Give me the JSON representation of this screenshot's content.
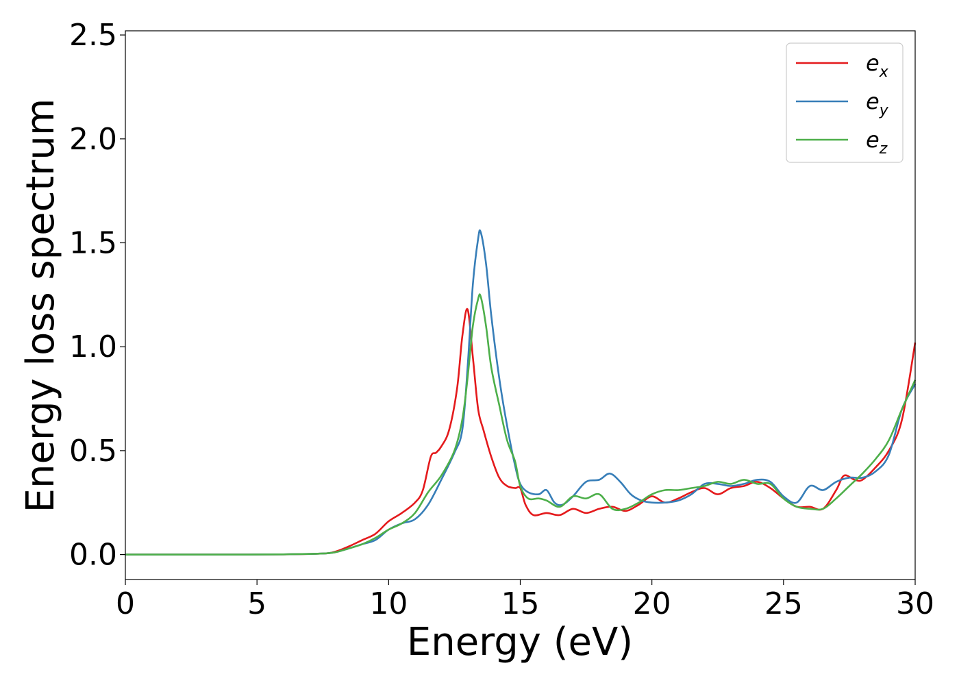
{
  "chart_data": {
    "type": "line",
    "title": "",
    "xlabel": "Energy (eV)",
    "ylabel": "Energy loss spectrum",
    "xlim": [
      0,
      30
    ],
    "ylim": [
      -0.12,
      2.52
    ],
    "xticks": [
      0,
      5,
      10,
      15,
      20,
      25,
      30
    ],
    "xtick_labels": [
      "0",
      "5",
      "10",
      "15",
      "20",
      "25",
      "30"
    ],
    "yticks": [
      0.0,
      0.5,
      1.0,
      1.5,
      2.0,
      2.5
    ],
    "ytick_labels": [
      "0.0",
      "0.5",
      "1.0",
      "1.5",
      "2.0",
      "2.5"
    ],
    "grid": false,
    "legend_position": "top-right",
    "series": [
      {
        "name": "e",
        "subscript": "x",
        "color": "#e41a1c",
        "x": [
          0,
          2,
          4,
          6,
          7.5,
          8,
          8.5,
          9,
          9.5,
          10,
          10.5,
          11,
          11.3,
          11.6,
          11.8,
          12,
          12.3,
          12.6,
          12.8,
          13.0,
          13.2,
          13.4,
          13.6,
          13.9,
          14.2,
          14.5,
          14.8,
          15.0,
          15.2,
          15.5,
          16,
          16.5,
          17,
          17.5,
          18,
          18.5,
          19,
          19.5,
          20,
          20.5,
          21,
          21.5,
          22,
          22.5,
          23,
          23.5,
          24,
          24.5,
          25,
          25.5,
          26,
          26.5,
          27,
          27.3,
          27.7,
          28,
          28.5,
          29,
          29.5,
          30
        ],
        "y": [
          0.0,
          0.0,
          0.0,
          0.001,
          0.005,
          0.015,
          0.04,
          0.07,
          0.1,
          0.16,
          0.2,
          0.25,
          0.31,
          0.47,
          0.49,
          0.52,
          0.6,
          0.8,
          1.05,
          1.18,
          0.95,
          0.7,
          0.6,
          0.47,
          0.37,
          0.33,
          0.32,
          0.32,
          0.24,
          0.19,
          0.2,
          0.19,
          0.22,
          0.2,
          0.22,
          0.23,
          0.21,
          0.24,
          0.28,
          0.25,
          0.27,
          0.3,
          0.32,
          0.29,
          0.32,
          0.33,
          0.35,
          0.32,
          0.27,
          0.23,
          0.23,
          0.22,
          0.31,
          0.38,
          0.36,
          0.36,
          0.42,
          0.5,
          0.65,
          1.02
        ]
      },
      {
        "name": "e",
        "subscript": "y",
        "color": "#377eb8",
        "x": [
          0,
          2,
          4,
          6,
          7.5,
          8,
          8.5,
          9,
          9.5,
          10,
          10.5,
          11,
          11.5,
          12,
          12.5,
          12.8,
          13.0,
          13.2,
          13.4,
          13.5,
          13.7,
          13.9,
          14.2,
          14.5,
          14.8,
          15.0,
          15.3,
          15.7,
          16.0,
          16.3,
          16.6,
          17,
          17.5,
          18,
          18.4,
          18.8,
          19.2,
          19.6,
          20,
          20.5,
          21,
          21.5,
          22,
          22.5,
          23,
          23.5,
          24,
          24.5,
          25,
          25.5,
          26,
          26.5,
          27,
          27.5,
          28,
          28.5,
          29,
          29.5,
          30
        ],
        "y": [
          0.0,
          0.0,
          0.0,
          0.001,
          0.005,
          0.012,
          0.03,
          0.05,
          0.07,
          0.12,
          0.15,
          0.17,
          0.24,
          0.36,
          0.49,
          0.6,
          0.9,
          1.3,
          1.52,
          1.55,
          1.4,
          1.15,
          0.85,
          0.62,
          0.43,
          0.34,
          0.3,
          0.29,
          0.31,
          0.25,
          0.24,
          0.28,
          0.35,
          0.36,
          0.39,
          0.35,
          0.29,
          0.26,
          0.25,
          0.25,
          0.26,
          0.29,
          0.34,
          0.34,
          0.33,
          0.34,
          0.36,
          0.35,
          0.28,
          0.25,
          0.33,
          0.31,
          0.35,
          0.37,
          0.37,
          0.4,
          0.48,
          0.7,
          0.82
        ]
      },
      {
        "name": "e",
        "subscript": "z",
        "color": "#4daf4a",
        "x": [
          0,
          2,
          4,
          6,
          7.5,
          8,
          8.5,
          9,
          9.5,
          10,
          10.5,
          11,
          11.5,
          12,
          12.5,
          12.8,
          13.0,
          13.2,
          13.4,
          13.5,
          13.7,
          13.9,
          14.2,
          14.5,
          14.8,
          15.0,
          15.3,
          15.7,
          16.0,
          16.5,
          17,
          17.5,
          18,
          18.5,
          19,
          19.5,
          20,
          20.5,
          21,
          21.5,
          22,
          22.5,
          23,
          23.5,
          24,
          24.5,
          25,
          25.5,
          26,
          26.5,
          27,
          27.5,
          28,
          28.5,
          29,
          29.5,
          30
        ],
        "y": [
          0.0,
          0.0,
          0.0,
          0.001,
          0.005,
          0.012,
          0.03,
          0.05,
          0.08,
          0.12,
          0.15,
          0.2,
          0.3,
          0.38,
          0.5,
          0.65,
          0.85,
          1.1,
          1.23,
          1.24,
          1.1,
          0.9,
          0.72,
          0.55,
          0.45,
          0.33,
          0.27,
          0.27,
          0.26,
          0.23,
          0.28,
          0.27,
          0.29,
          0.22,
          0.22,
          0.25,
          0.29,
          0.31,
          0.31,
          0.32,
          0.33,
          0.35,
          0.34,
          0.36,
          0.34,
          0.34,
          0.27,
          0.23,
          0.22,
          0.22,
          0.27,
          0.33,
          0.39,
          0.46,
          0.55,
          0.7,
          0.84
        ]
      }
    ]
  }
}
